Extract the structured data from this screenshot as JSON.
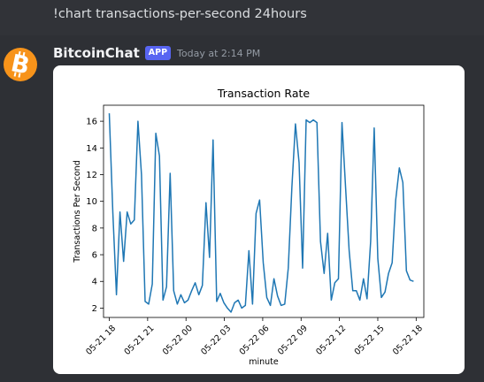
{
  "command_message": {
    "text": "!chart transactions-per-second 24hours"
  },
  "bot_message": {
    "username": "BitcoinChat",
    "badge": "APP",
    "timestamp": "Today at 2:14 PM",
    "avatar_icon": "bitcoin-logo-icon",
    "avatar_color": "#f7931a"
  },
  "chart_data": {
    "type": "line",
    "title": "Transaction Rate",
    "xlabel": "minute",
    "ylabel": "Transactions Per Second",
    "x_tick_labels": [
      "05-21 18",
      "05-21 21",
      "05-22 00",
      "05-22 03",
      "05-22 06",
      "05-22 09",
      "05-22 12",
      "05-22 15",
      "05-22 18"
    ],
    "y_ticks": [
      2,
      4,
      6,
      8,
      10,
      12,
      14,
      16
    ],
    "ylim": [
      1.3,
      17.2
    ],
    "xlim_hours": [
      -0.45,
      24.6
    ],
    "line_color": "#1f77b4",
    "grid": false,
    "series": [
      {
        "name": "",
        "x_hours": [
          0.0,
          0.28,
          0.56,
          0.84,
          1.12,
          1.4,
          1.68,
          1.96,
          2.24,
          2.52,
          2.8,
          3.08,
          3.36,
          3.64,
          3.92,
          4.2,
          4.48,
          4.76,
          5.04,
          5.32,
          5.6,
          5.88,
          6.16,
          6.44,
          6.72,
          7.0,
          7.28,
          7.56,
          7.84,
          8.12,
          8.4,
          8.68,
          8.96,
          9.24,
          9.52,
          9.8,
          10.08,
          10.36,
          10.64,
          10.92,
          11.2,
          11.48,
          11.76,
          12.04,
          12.32,
          12.6,
          12.88,
          13.16,
          13.44,
          13.72,
          14.0,
          14.28,
          14.56,
          14.84,
          15.12,
          15.4,
          15.68,
          15.96,
          16.24,
          16.52,
          16.8,
          17.08,
          17.36,
          17.64,
          17.92,
          18.2,
          18.48,
          18.76,
          19.04,
          19.32,
          19.6,
          19.88,
          20.16,
          20.44,
          20.72,
          21.0,
          21.28,
          21.56,
          21.84,
          22.12,
          22.4,
          22.68,
          22.96,
          23.24,
          23.52,
          23.8
        ],
        "values": [
          16.6,
          9.2,
          3.0,
          9.2,
          5.5,
          9.2,
          8.3,
          8.6,
          16.0,
          12.0,
          2.5,
          2.3,
          3.8,
          15.1,
          13.4,
          2.6,
          3.6,
          12.1,
          3.3,
          2.3,
          3.0,
          2.4,
          2.6,
          3.3,
          3.9,
          3.0,
          3.7,
          9.9,
          5.8,
          14.6,
          2.5,
          3.1,
          2.4,
          2.0,
          1.7,
          2.4,
          2.6,
          2.0,
          2.2,
          6.3,
          2.3,
          9.1,
          10.1,
          5.4,
          2.8,
          2.2,
          4.2,
          2.9,
          2.2,
          2.3,
          5.0,
          11.1,
          15.8,
          12.9,
          5.0,
          16.1,
          15.9,
          16.1,
          15.9,
          7.0,
          4.6,
          7.6,
          2.6,
          3.9,
          4.2,
          15.9,
          11.0,
          6.3,
          3.3,
          3.3,
          2.6,
          4.2,
          2.7,
          7.0,
          15.5,
          5.7,
          2.8,
          3.2,
          4.6,
          5.4,
          10.1,
          12.5,
          11.4,
          4.8,
          4.1,
          4.0
        ]
      }
    ]
  }
}
